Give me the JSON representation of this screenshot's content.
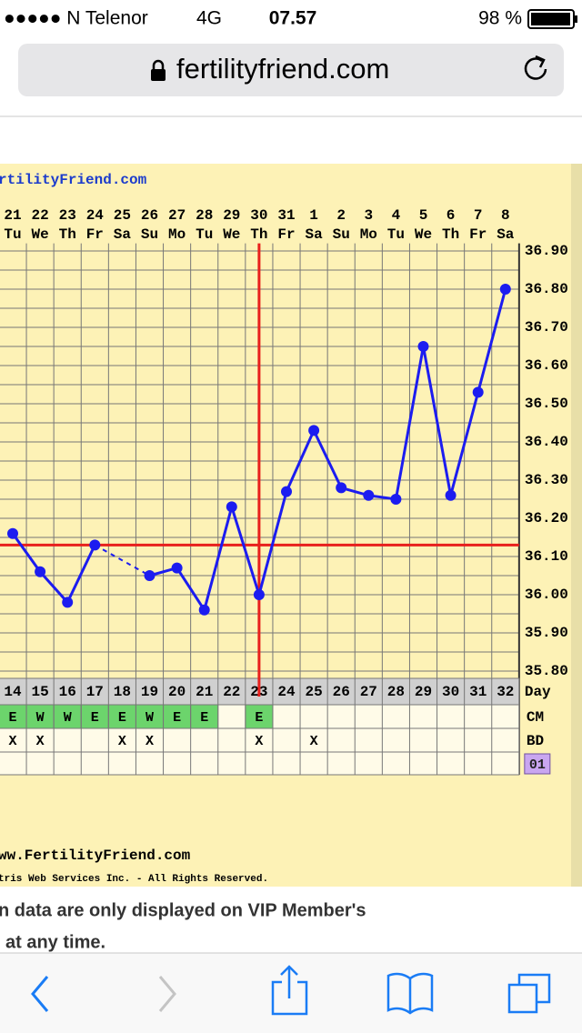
{
  "status_bar": {
    "carrier": "●●●●● N Telenor",
    "network": "4G",
    "time": "07.57",
    "battery": "98 %"
  },
  "url_bar": {
    "url": "fertilityfriend.com"
  },
  "chart_header": "rtilityFriend.com",
  "chart_footer": {
    "url": "ww.FertilityFriend.com",
    "copyright": "tris Web Services Inc. - All Rights Reserved."
  },
  "page_text": [
    "n data are only displayed on VIP Member's",
    "at any time."
  ],
  "chart_data": {
    "type": "line",
    "categories": [
      "21",
      "22",
      "23",
      "24",
      "25",
      "26",
      "27",
      "28",
      "29",
      "30",
      "31",
      "1",
      "2",
      "3",
      "4",
      "5",
      "6",
      "7",
      "8"
    ],
    "weekdays": [
      "Tu",
      "We",
      "Th",
      "Fr",
      "Sa",
      "Su",
      "Mo",
      "Tu",
      "We",
      "Th",
      "Fr",
      "Sa",
      "Su",
      "Mo",
      "Tu",
      "We",
      "Th",
      "Fr",
      "Sa"
    ],
    "cycle_days": [
      14,
      15,
      16,
      17,
      18,
      19,
      20,
      21,
      22,
      23,
      24,
      25,
      26,
      27,
      28,
      29,
      30,
      31,
      32
    ],
    "values": [
      36.16,
      36.06,
      35.98,
      36.13,
      null,
      36.05,
      36.07,
      35.96,
      36.23,
      36.0,
      36.27,
      36.43,
      36.28,
      36.26,
      36.25,
      36.65,
      36.26,
      36.53,
      36.8
    ],
    "color": "#1c1cf0",
    "coverline": 36.13,
    "ovulation_index": 9,
    "marker_color": "#e8201c",
    "ylim": [
      35.78,
      36.92
    ],
    "yticks": [
      {
        "value": 36.9,
        "label": "36.90"
      },
      {
        "value": 36.8,
        "label": "36.80"
      },
      {
        "value": 36.7,
        "label": "36.70"
      },
      {
        "value": 36.6,
        "label": "36.60"
      },
      {
        "value": 36.5,
        "label": "36.50"
      },
      {
        "value": 36.4,
        "label": "36.40"
      },
      {
        "value": 36.3,
        "label": "36.30"
      },
      {
        "value": 36.2,
        "label": "36.20"
      },
      {
        "value": 36.1,
        "label": "36.10"
      },
      {
        "value": 36.0,
        "label": "36.00"
      },
      {
        "value": 35.9,
        "label": "35.90"
      },
      {
        "value": 35.8,
        "label": "35.80"
      }
    ],
    "grid": true,
    "row_labels": {
      "day": "Day",
      "cm": "CM",
      "bd": "BD",
      "badge": "01"
    },
    "cm": [
      "E",
      "W",
      "W",
      "E",
      "E",
      "W",
      "E",
      "E",
      null,
      "E",
      null,
      null,
      null,
      null,
      null,
      null,
      null,
      null,
      null
    ],
    "bd": [
      "X",
      "X",
      null,
      null,
      "X",
      "X",
      null,
      null,
      null,
      "X",
      null,
      "X",
      null,
      null,
      null,
      null,
      null,
      null,
      null
    ]
  }
}
